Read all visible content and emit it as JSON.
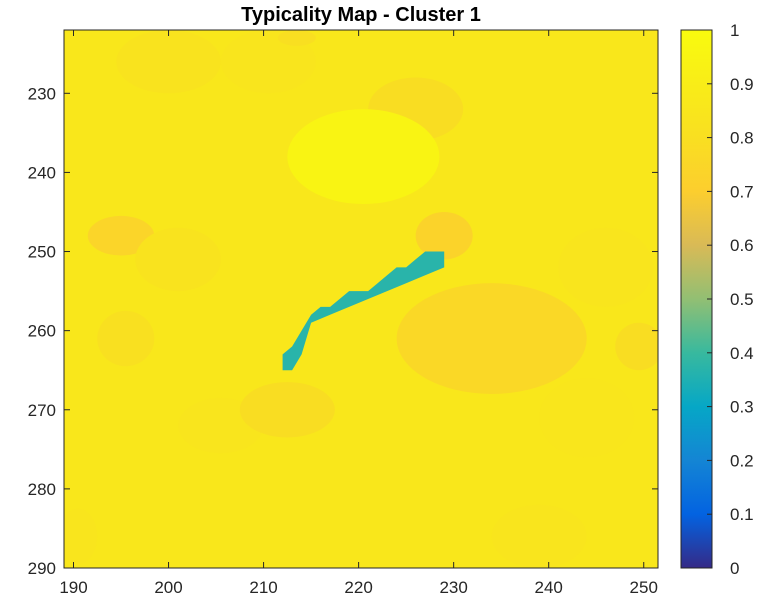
{
  "chart_data": {
    "type": "heatmap",
    "title": "Typicality Map - Cluster 1",
    "xlabel": "",
    "ylabel": "",
    "xlim": [
      189,
      251.5
    ],
    "ylim": [
      222,
      290
    ],
    "y_reversed": true,
    "grid": false,
    "x_ticks": [
      190,
      200,
      210,
      220,
      230,
      240,
      250
    ],
    "y_ticks": [
      230,
      240,
      250,
      260,
      270,
      280,
      290
    ],
    "colormap": "parula",
    "clim": [
      0,
      1
    ],
    "colorbar": {
      "ticks": [
        "0",
        "0.1",
        "0.2",
        "0.3",
        "0.4",
        "0.5",
        "0.6",
        "0.7",
        "0.8",
        "0.9",
        "1"
      ],
      "placement": "right"
    },
    "background_value": 0.86,
    "regions": [
      {
        "cx": 200,
        "cy": 226,
        "rx": 5.5,
        "ry": 4,
        "value": 0.83
      },
      {
        "cx": 210.5,
        "cy": 226,
        "rx": 5,
        "ry": 4,
        "value": 0.84
      },
      {
        "cx": 226,
        "cy": 232,
        "rx": 5,
        "ry": 4,
        "value": 0.79
      },
      {
        "cx": 220.5,
        "cy": 238,
        "rx": 8,
        "ry": 6,
        "value": 0.95
      },
      {
        "cx": 195,
        "cy": 248,
        "rx": 3.5,
        "ry": 2.5,
        "value": 0.74
      },
      {
        "cx": 201,
        "cy": 251,
        "rx": 4.5,
        "ry": 4,
        "value": 0.83
      },
      {
        "cx": 229,
        "cy": 248,
        "rx": 3,
        "ry": 3,
        "value": 0.73
      },
      {
        "cx": 234,
        "cy": 261,
        "rx": 10,
        "ry": 7,
        "value": 0.76
      },
      {
        "cx": 246,
        "cy": 252,
        "rx": 5,
        "ry": 5,
        "value": 0.84
      },
      {
        "cx": 195.5,
        "cy": 261,
        "rx": 3,
        "ry": 3.5,
        "value": 0.81
      },
      {
        "cx": 205.5,
        "cy": 272,
        "rx": 4.5,
        "ry": 3.5,
        "value": 0.84
      },
      {
        "cx": 212.5,
        "cy": 270,
        "rx": 5,
        "ry": 3.5,
        "value": 0.79
      },
      {
        "cx": 244,
        "cy": 271,
        "rx": 5,
        "ry": 5,
        "value": 0.85
      },
      {
        "cx": 239,
        "cy": 286,
        "rx": 5,
        "ry": 4,
        "value": 0.84
      },
      {
        "cx": 190.5,
        "cy": 286,
        "rx": 2,
        "ry": 3.5,
        "value": 0.84
      },
      {
        "cx": 249.5,
        "cy": 262,
        "rx": 2.5,
        "ry": 3,
        "value": 0.79
      },
      {
        "cx": 213.5,
        "cy": 223,
        "rx": 2,
        "ry": 1,
        "value": 0.8
      }
    ],
    "low_region": {
      "value": 0.37,
      "x": [
        212,
        213,
        214,
        215,
        216,
        217,
        218,
        219,
        220,
        221,
        222,
        223,
        224,
        225,
        226,
        227,
        228,
        229,
        229,
        227,
        225,
        223,
        221,
        219,
        217,
        215,
        214,
        213,
        212
      ],
      "y": [
        263,
        262,
        260,
        258,
        257,
        257,
        256,
        255,
        255,
        255,
        254,
        253,
        252,
        252,
        251,
        250,
        250,
        250,
        252,
        253,
        254,
        255,
        256,
        257,
        258,
        259,
        263,
        265,
        265
      ]
    }
  }
}
